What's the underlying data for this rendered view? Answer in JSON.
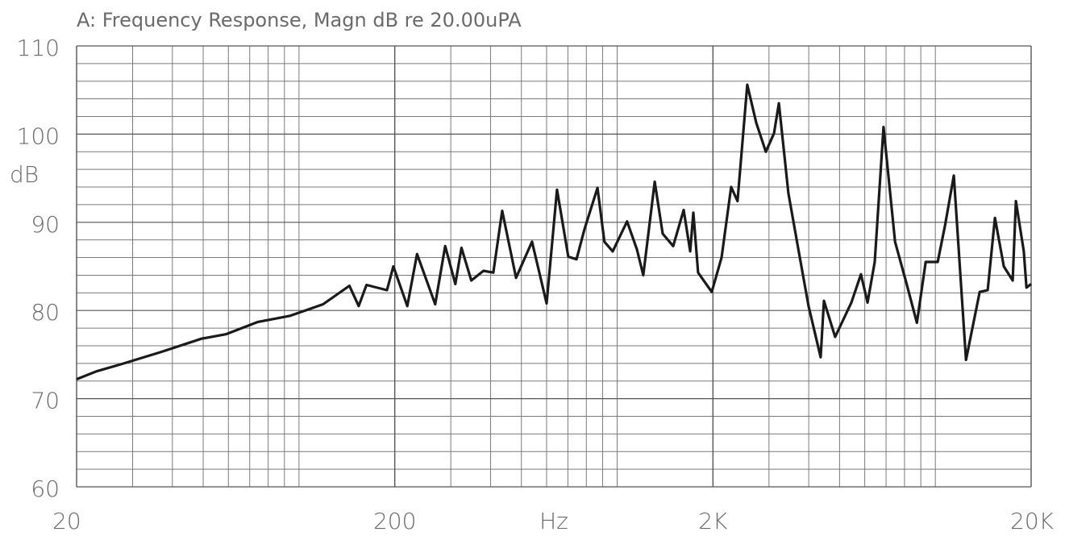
{
  "chart_data": {
    "type": "line",
    "title": "A: Frequency Response, Magn dB re 20.00uPA",
    "xlabel": "Hz",
    "ylabel": "dB",
    "xscale": "log",
    "xlim": [
      20,
      20000
    ],
    "xticks": [
      20,
      200,
      {
        "value": 2000,
        "label": "2K"
      },
      {
        "value": 20000,
        "label": "20K"
      }
    ],
    "x_minor_ticks": [
      30,
      40,
      50,
      60,
      70,
      80,
      90,
      100,
      300,
      400,
      500,
      600,
      700,
      800,
      900,
      1000,
      3000,
      4000,
      5000,
      6000,
      7000,
      8000,
      9000,
      10000
    ],
    "ylim": [
      60,
      110
    ],
    "yticks": [
      60,
      70,
      80,
      90,
      100,
      110
    ],
    "y_minor_ticks": [
      62,
      64,
      66,
      68,
      72,
      74,
      76,
      78,
      82,
      84,
      86,
      88,
      92,
      94,
      96,
      98,
      102,
      104,
      106,
      108
    ],
    "grid": true,
    "color": "#1a1a1a",
    "x": [
      20,
      23.1,
      27.6,
      36.9,
      49.4,
      58.9,
      74.3,
      93.8,
      119,
      144,
      154,
      163,
      189,
      198,
      219,
      235,
      268,
      288,
      310,
      324,
      348,
      380,
      408,
      435,
      481,
      540,
      600,
      647,
      702,
      745,
      789,
      867,
      912,
      968,
      1074,
      1154,
      1208,
      1312,
      1390,
      1500,
      1618,
      1696,
      1735,
      1796,
      1982,
      2129,
      2281,
      2389,
      2564,
      2735,
      2932,
      3111,
      3222,
      3452,
      3750,
      3995,
      4359,
      4466,
      4843,
      5446,
      5838,
      6122,
      6448,
      6874,
      7468,
      8097,
      8750,
      9323,
      10170,
      10720,
      11430,
      12480,
      13780,
      14600,
      15390,
      16410,
      17500,
      17910,
      18970,
      19330,
      20000
    ],
    "values": [
      72.2,
      73.1,
      73.9,
      75.3,
      76.8,
      77.3,
      78.7,
      79.4,
      80.7,
      82.8,
      80.5,
      82.9,
      82.3,
      85.0,
      80.5,
      86.4,
      80.7,
      87.3,
      83.0,
      87.1,
      83.4,
      84.5,
      84.3,
      91.3,
      83.7,
      87.8,
      80.8,
      93.7,
      86.1,
      85.8,
      89.2,
      93.9,
      87.8,
      86.7,
      90.1,
      86.9,
      84.0,
      94.6,
      88.7,
      87.3,
      91.4,
      86.7,
      91.1,
      84.3,
      82.1,
      86.0,
      94.0,
      92.4,
      105.6,
      101.3,
      98.0,
      100.1,
      103.5,
      93.3,
      86.0,
      80.5,
      74.7,
      81.1,
      77.0,
      80.9,
      84.1,
      80.9,
      85.5,
      100.8,
      87.8,
      83.2,
      78.6,
      85.5,
      85.5,
      89.6,
      95.3,
      74.4,
      82.1,
      82.3,
      90.5,
      85.0,
      83.4,
      92.4,
      86.7,
      82.6,
      83.0
    ]
  }
}
